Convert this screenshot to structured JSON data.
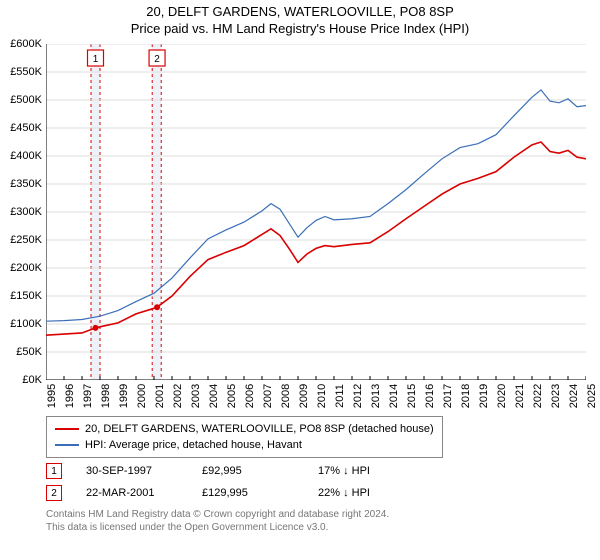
{
  "title": "20, DELFT GARDENS, WATERLOOVILLE, PO8 8SP",
  "subtitle": "Price paid vs. HM Land Registry's House Price Index (HPI)",
  "chart": {
    "type": "line",
    "background_color": "#ffffff",
    "grid_color": "#dddddd",
    "axis_color": "#000000",
    "label_fontsize": 11,
    "x_years": [
      1995,
      1996,
      1997,
      1998,
      1999,
      2000,
      2001,
      2002,
      2003,
      2004,
      2005,
      2006,
      2007,
      2008,
      2009,
      2010,
      2011,
      2012,
      2013,
      2014,
      2015,
      2016,
      2017,
      2018,
      2019,
      2020,
      2021,
      2022,
      2023,
      2024,
      2025
    ],
    "x_min": 1995,
    "x_max": 2025,
    "y_min": 0,
    "y_max": 600,
    "y_tick_step": 50,
    "y_prefix": "£",
    "y_suffix": "K",
    "series": [
      {
        "label": "20, DELFT GARDENS, WATERLOOVILLE, PO8 8SP (detached house)",
        "color": "#d90000",
        "width": 1.6,
        "points": [
          [
            1995,
            80
          ],
          [
            1996,
            82
          ],
          [
            1997,
            84
          ],
          [
            1997.75,
            93
          ],
          [
            1998,
            95
          ],
          [
            1999,
            102
          ],
          [
            2000,
            118
          ],
          [
            2001,
            128
          ],
          [
            2001.17,
            130
          ],
          [
            2002,
            150
          ],
          [
            2003,
            185
          ],
          [
            2004,
            215
          ],
          [
            2005,
            228
          ],
          [
            2006,
            240
          ],
          [
            2007,
            260
          ],
          [
            2007.5,
            270
          ],
          [
            2008,
            258
          ],
          [
            2008.5,
            235
          ],
          [
            2009,
            210
          ],
          [
            2009.5,
            225
          ],
          [
            2010,
            235
          ],
          [
            2010.5,
            240
          ],
          [
            2011,
            238
          ],
          [
            2012,
            242
          ],
          [
            2013,
            245
          ],
          [
            2014,
            265
          ],
          [
            2015,
            288
          ],
          [
            2016,
            310
          ],
          [
            2017,
            332
          ],
          [
            2018,
            350
          ],
          [
            2019,
            360
          ],
          [
            2020,
            372
          ],
          [
            2021,
            398
          ],
          [
            2022,
            420
          ],
          [
            2022.5,
            425
          ],
          [
            2023,
            408
          ],
          [
            2023.5,
            405
          ],
          [
            2024,
            410
          ],
          [
            2024.5,
            398
          ],
          [
            2025,
            395
          ]
        ]
      },
      {
        "label": "HPI: Average price, detached house, Havant",
        "color": "#3a6fb7",
        "width": 1.2,
        "points": [
          [
            1995,
            105
          ],
          [
            1996,
            106
          ],
          [
            1997,
            108
          ],
          [
            1998,
            114
          ],
          [
            1999,
            124
          ],
          [
            2000,
            140
          ],
          [
            2001,
            155
          ],
          [
            2002,
            182
          ],
          [
            2003,
            218
          ],
          [
            2004,
            252
          ],
          [
            2005,
            268
          ],
          [
            2006,
            282
          ],
          [
            2007,
            302
          ],
          [
            2007.5,
            315
          ],
          [
            2008,
            305
          ],
          [
            2008.5,
            280
          ],
          [
            2009,
            255
          ],
          [
            2009.5,
            272
          ],
          [
            2010,
            285
          ],
          [
            2010.5,
            292
          ],
          [
            2011,
            286
          ],
          [
            2012,
            288
          ],
          [
            2013,
            292
          ],
          [
            2014,
            315
          ],
          [
            2015,
            340
          ],
          [
            2016,
            368
          ],
          [
            2017,
            395
          ],
          [
            2018,
            415
          ],
          [
            2019,
            422
          ],
          [
            2020,
            438
          ],
          [
            2021,
            472
          ],
          [
            2022,
            505
          ],
          [
            2022.5,
            518
          ],
          [
            2023,
            498
          ],
          [
            2023.5,
            495
          ],
          [
            2024,
            502
          ],
          [
            2024.5,
            488
          ],
          [
            2025,
            490
          ]
        ]
      }
    ],
    "markers": [
      {
        "num": "1",
        "year": 1997.75,
        "price": 93,
        "border": "#d90000",
        "band_start": 1997.5,
        "band_end": 1998.0,
        "band_fill": "#eef2f8",
        "date": "30-SEP-1997",
        "price_label": "£92,995",
        "pct": "17%",
        "direction": "↓",
        "suffix": "HPI"
      },
      {
        "num": "2",
        "year": 2001.17,
        "price": 130,
        "border": "#d90000",
        "band_start": 2000.9,
        "band_end": 2001.4,
        "band_fill": "#eef2f8",
        "date": "22-MAR-2001",
        "price_label": "£129,995",
        "pct": "22%",
        "direction": "↓",
        "suffix": "HPI"
      }
    ]
  },
  "footer_line1": "Contains HM Land Registry data © Crown copyright and database right 2024.",
  "footer_line2": "This data is licensed under the Open Government Licence v3.0."
}
